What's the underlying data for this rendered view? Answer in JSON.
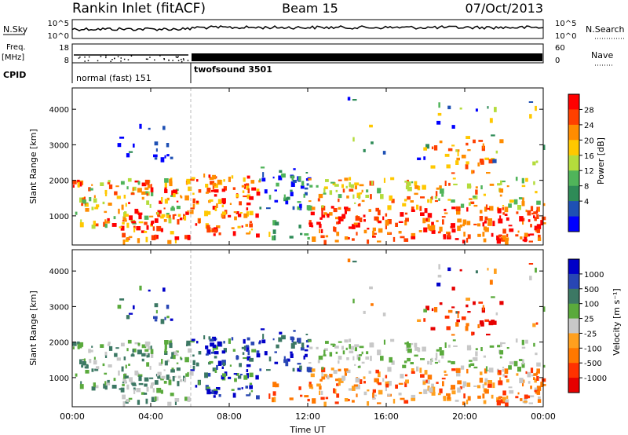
{
  "header": {
    "station": "Rankin Inlet (fitACF)",
    "beam": "Beam 15",
    "date": "07/Oct/2013"
  },
  "strips": {
    "nsky_label": "N.Sky",
    "nsky_ticks": [
      "10^5",
      "10^0"
    ],
    "nsearch_label": "N.Search",
    "nsearch_ticks": [
      "10^5",
      "10^0"
    ],
    "freq_label_top": "Freq.",
    "freq_label_bottom": "[MHz]",
    "freq_ticks": [
      "18",
      "8"
    ],
    "nave_label": "Nave",
    "nave_ticks": [
      "60",
      "0"
    ],
    "cpid_label": "CPID",
    "cpid_segments": [
      "normal (fast) 151",
      "twofsound 3501"
    ]
  },
  "chart_data": [
    {
      "type": "heatmap",
      "title": "",
      "ylabel": "Slant Range [km]",
      "xlabel": "",
      "ylim": [
        180,
        4600
      ],
      "yticks": [
        "1000",
        "2000",
        "3000",
        "4000"
      ],
      "colorbar": {
        "label": "Power [dB]",
        "ticks": [
          "28",
          "24",
          "20",
          "16",
          "12",
          "8",
          "4"
        ],
        "colors": [
          "#ff0000",
          "#ff4000",
          "#ff8c00",
          "#ffc800",
          "#b4dc3c",
          "#50b45a",
          "#2e8b57",
          "#1e50b4",
          "#0000ff"
        ]
      }
    },
    {
      "type": "heatmap",
      "title": "",
      "ylabel": "Slant Range [km]",
      "xlabel": "Time UT",
      "ylim": [
        180,
        4600
      ],
      "yticks": [
        "1000",
        "2000",
        "3000",
        "4000"
      ],
      "xticks": [
        "00:00",
        "04:00",
        "08:00",
        "12:00",
        "16:00",
        "20:00",
        "00:00"
      ],
      "colorbar": {
        "label": "Velocity [m s⁻¹]",
        "ticks": [
          "1000",
          "500",
          "100",
          "25",
          "-25",
          "-100",
          "-500",
          "-1000"
        ],
        "colors": [
          "#0000c8",
          "#2846b4",
          "#3c7864",
          "#5aaa3c",
          "#c8c8c8",
          "#ffa01e",
          "#ff7800",
          "#ff3200",
          "#e60000"
        ]
      }
    }
  ]
}
